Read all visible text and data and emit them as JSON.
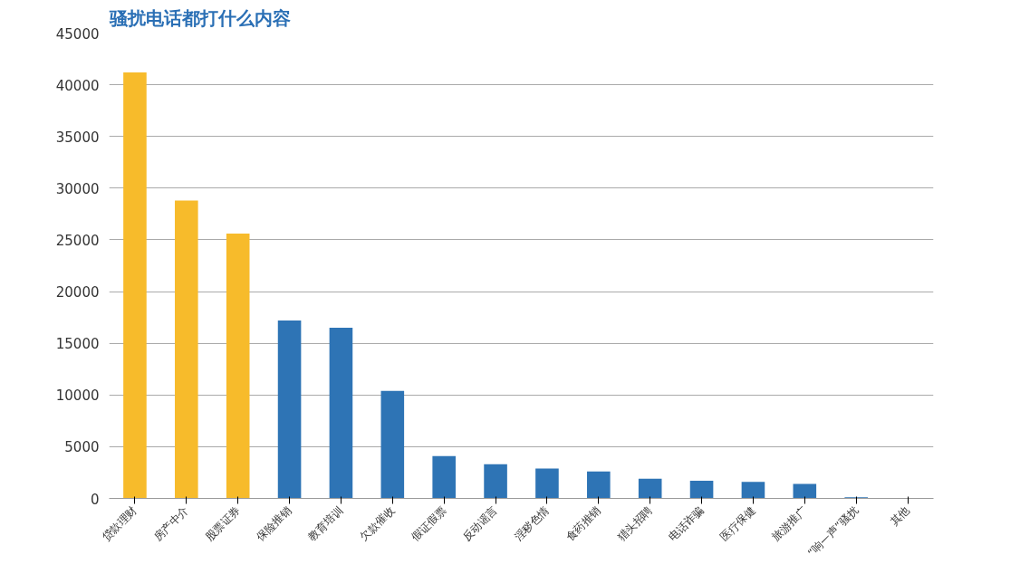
{
  "chart_data": {
    "type": "bar",
    "title": "骚扰电话都打什么内容",
    "categories": [
      "贷款理财",
      "房产中介",
      "股票证券",
      "保险推销",
      "教育培训",
      "欠款催收",
      "假证假票",
      "反动谣言",
      "淫秽色情",
      "食药推销",
      "猎头招聘",
      "电话诈骗",
      "医疗保健",
      "旅游推广",
      "“响一声”骚扰",
      "其他"
    ],
    "values": [
      41200,
      28800,
      25600,
      17200,
      16500,
      10400,
      4100,
      3300,
      2900,
      2600,
      1900,
      1700,
      1600,
      1400,
      100,
      50
    ],
    "colors": [
      "#f7bb2b",
      "#f7bb2b",
      "#f7bb2b",
      "#2e74b5",
      "#2e74b5",
      "#2e74b5",
      "#2e74b5",
      "#2e74b5",
      "#2e74b5",
      "#2e74b5",
      "#2e74b5",
      "#2e74b5",
      "#2e74b5",
      "#2e74b5",
      "#2e74b5",
      "#2e74b5"
    ],
    "ylim": [
      0,
      45000
    ],
    "yticks": [
      0,
      5000,
      10000,
      15000,
      20000,
      25000,
      30000,
      35000,
      40000,
      45000
    ],
    "grid": "y"
  }
}
